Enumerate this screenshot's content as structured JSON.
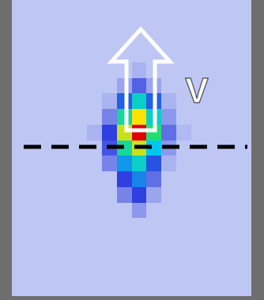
{
  "chart_data": {
    "type": "heatmap",
    "label": "V",
    "tick_labels": false,
    "xlim": [
      -0.5,
      15.5
    ],
    "ylim": [
      18.5,
      -0.5
    ],
    "color_range": [
      0,
      100
    ],
    "cells": [
      [
        5,
        5,
        5,
        5,
        5,
        5,
        5,
        5,
        5,
        5,
        5,
        5,
        5,
        5,
        5,
        5
      ],
      [
        5,
        5,
        5,
        5,
        5,
        5,
        5,
        5,
        5,
        5,
        5,
        5,
        5,
        5,
        5,
        5
      ],
      [
        5,
        5,
        5,
        5,
        5,
        5,
        5,
        5,
        5,
        5,
        5,
        5,
        5,
        5,
        5,
        5
      ],
      [
        5,
        5,
        5,
        5,
        5,
        5,
        5,
        5,
        5,
        5,
        5,
        5,
        5,
        5,
        5,
        5
      ],
      [
        5,
        5,
        5,
        5,
        5,
        5,
        5,
        5,
        8,
        5,
        5,
        5,
        5,
        5,
        5,
        5
      ],
      [
        5,
        5,
        5,
        5,
        5,
        5,
        5,
        10,
        20,
        10,
        5,
        5,
        5,
        5,
        5,
        5
      ],
      [
        5,
        5,
        5,
        5,
        5,
        5,
        8,
        30,
        50,
        30,
        8,
        5,
        5,
        5,
        5,
        5
      ],
      [
        5,
        5,
        5,
        5,
        5,
        5,
        15,
        55,
        80,
        50,
        12,
        5,
        5,
        5,
        5,
        5
      ],
      [
        5,
        5,
        5,
        5,
        5,
        8,
        25,
        75,
        100,
        60,
        18,
        7,
        5,
        5,
        5,
        5
      ],
      [
        5,
        5,
        5,
        5,
        5,
        5,
        22,
        55,
        75,
        45,
        12,
        5,
        5,
        5,
        5,
        5
      ],
      [
        5,
        5,
        5,
        5,
        5,
        5,
        15,
        38,
        50,
        28,
        8,
        5,
        5,
        5,
        5,
        5
      ],
      [
        5,
        5,
        5,
        5,
        5,
        5,
        5,
        25,
        35,
        18,
        5,
        5,
        5,
        5,
        5,
        5
      ],
      [
        5,
        5,
        5,
        5,
        5,
        5,
        5,
        15,
        25,
        10,
        5,
        5,
        5,
        5,
        5,
        5
      ],
      [
        5,
        5,
        5,
        5,
        5,
        5,
        5,
        5,
        12,
        5,
        5,
        5,
        5,
        5,
        5,
        5
      ],
      [
        5,
        5,
        5,
        5,
        5,
        5,
        5,
        5,
        5,
        5,
        5,
        5,
        5,
        5,
        5,
        5
      ],
      [
        5,
        5,
        5,
        5,
        5,
        5,
        5,
        5,
        5,
        5,
        5,
        5,
        5,
        5,
        5,
        5
      ],
      [
        5,
        5,
        5,
        5,
        5,
        5,
        5,
        5,
        5,
        5,
        5,
        5,
        5,
        5,
        5,
        5
      ],
      [
        5,
        5,
        5,
        5,
        5,
        5,
        5,
        5,
        5,
        5,
        5,
        5,
        5,
        5,
        5,
        5
      ],
      [
        5,
        5,
        5,
        5,
        5,
        5,
        5,
        5,
        5,
        5,
        5,
        5,
        5,
        5,
        5,
        5
      ]
    ]
  }
}
